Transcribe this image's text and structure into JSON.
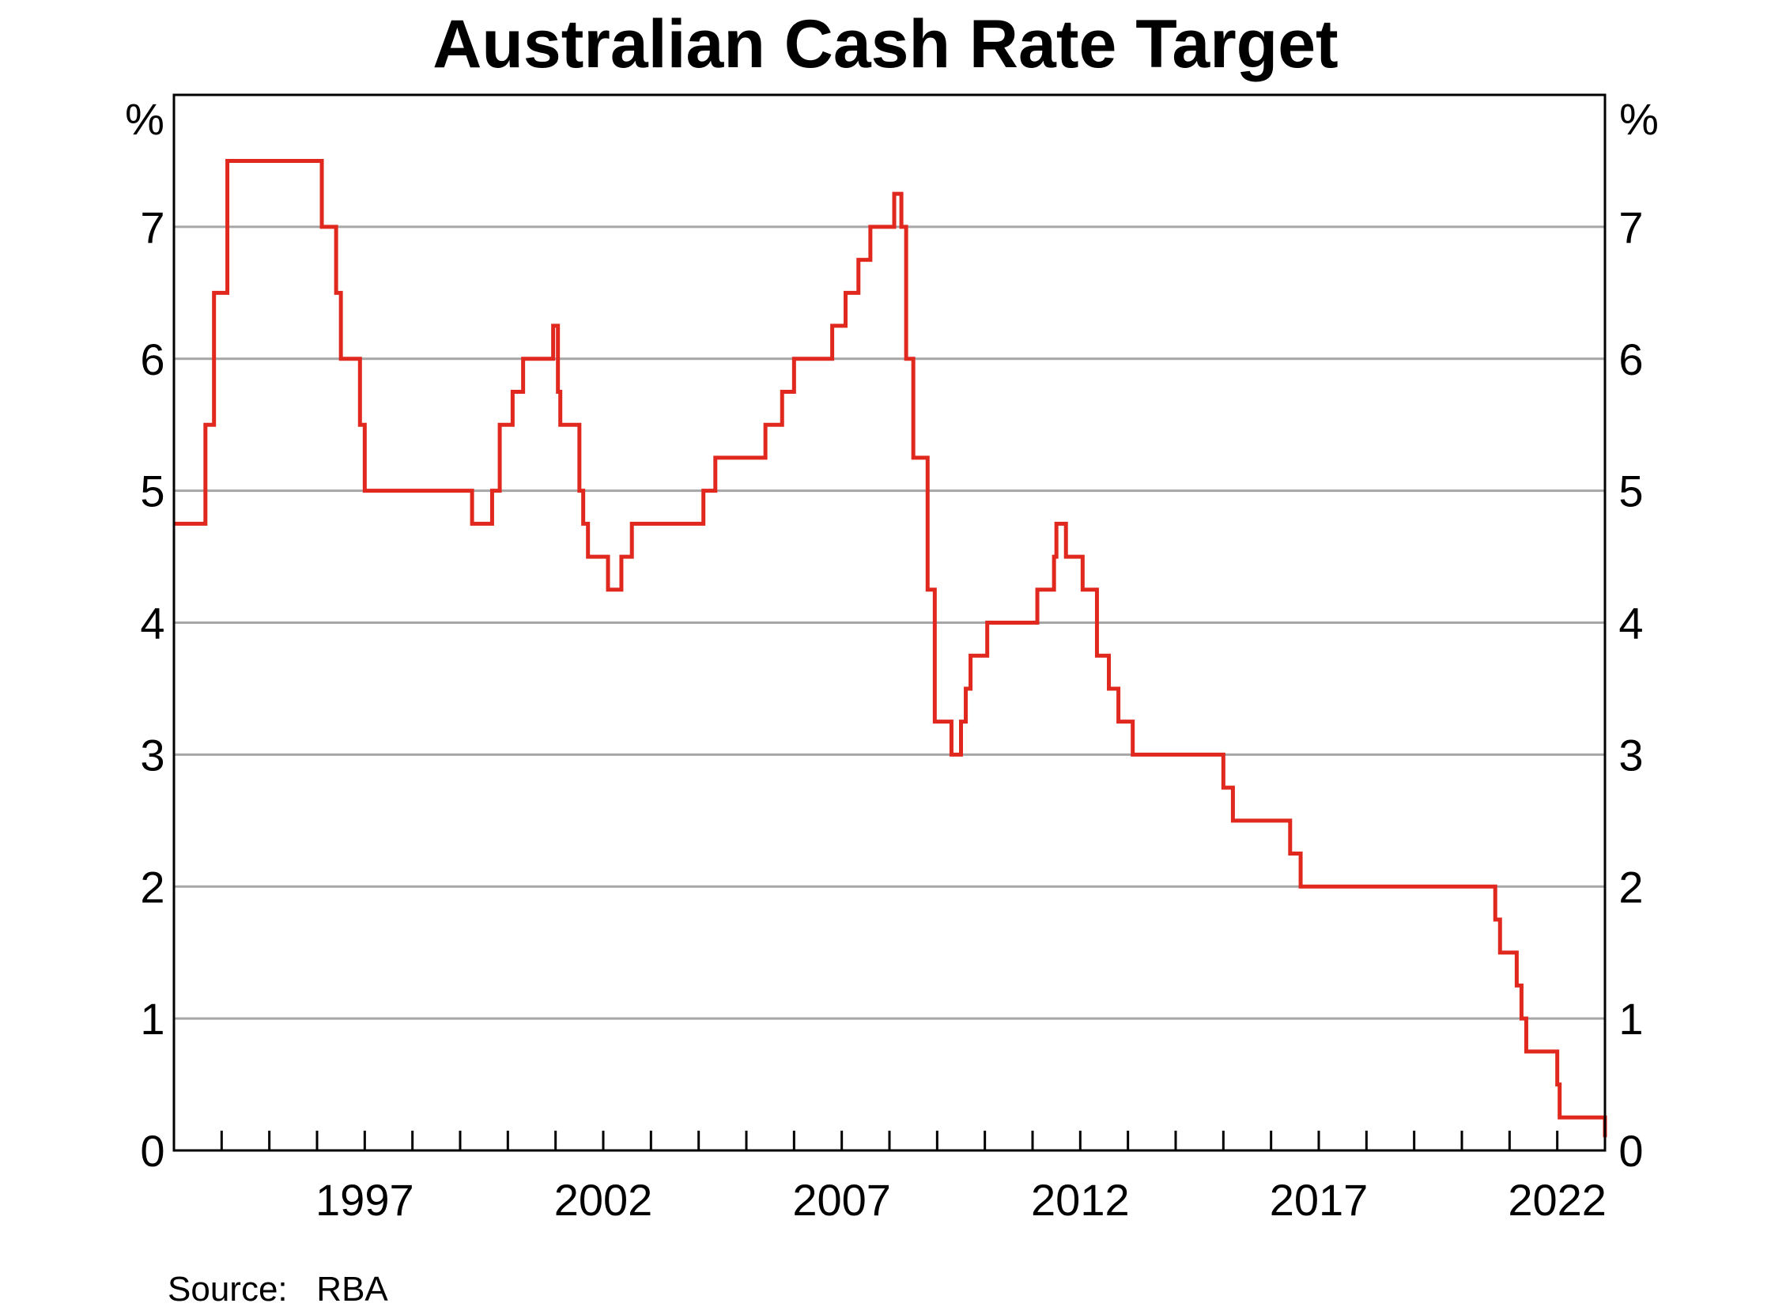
{
  "chart_data": {
    "type": "line",
    "title": "Australian Cash Rate Target",
    "y_unit_left": "%",
    "y_unit_right": "%",
    "source": "Source:   RBA",
    "xlim": [
      1993.5,
      2023.5
    ],
    "ylim": [
      0,
      8
    ],
    "yticks": [
      0,
      1,
      2,
      3,
      4,
      5,
      6,
      7
    ],
    "xtick_labels": [
      "1997",
      "2002",
      "2007",
      "2012",
      "2017",
      "2022"
    ],
    "xtick_positions": [
      1997.5,
      2002.5,
      2007.5,
      2012.5,
      2017.5,
      2022.5
    ],
    "minor_ticks_per_year": true,
    "grid": true,
    "colors": {
      "series": "#e0281e",
      "grid": "#a6a6a6",
      "axis": "#000000"
    },
    "series": [
      {
        "name": "",
        "step": "post",
        "x": [
          1993.5,
          1994.16,
          1994.34,
          1994.62,
          1994.95,
          1995.0,
          1996.6,
          1996.9,
          1997.0,
          1997.4,
          1997.5,
          1998.0,
          1999.75,
          2000.17,
          2000.33,
          2000.6,
          2000.82,
          2001.45,
          2001.55,
          2001.6,
          2002.0,
          2002.08,
          2002.18,
          2002.6,
          2002.88,
          2003.1,
          2004.6,
          2004.85,
          2005.9,
          2006.25,
          2006.5,
          2007.3,
          2007.58,
          2007.85,
          2008.1,
          2008.6,
          2008.75,
          2008.85,
          2009.0,
          2009.3,
          2009.45,
          2009.8,
          2010.0,
          2010.1,
          2010.2,
          2010.55,
          2011.6,
          2011.95,
          2012.0,
          2012.2,
          2012.55,
          2012.85,
          2013.1,
          2013.3,
          2013.6,
          2015.5,
          2015.7,
          2016.9,
          2017.12,
          2021.2,
          2021.3,
          2021.65,
          2021.75,
          2021.85,
          2022.5,
          2022.55,
          2023.5
        ],
        "y": [
          4.75,
          5.5,
          6.5,
          7.5,
          7.5,
          7.5,
          7.0,
          6.5,
          6.0,
          5.5,
          5.0,
          5.0,
          4.75,
          5.0,
          5.5,
          5.75,
          6.0,
          6.25,
          5.75,
          5.5,
          5.0,
          4.75,
          4.5,
          4.25,
          4.5,
          4.75,
          5.0,
          5.25,
          5.5,
          5.75,
          6.0,
          6.25,
          6.5,
          6.75,
          7.0,
          7.25,
          7.0,
          6.0,
          5.25,
          4.25,
          3.25,
          3.0,
          3.25,
          3.5,
          3.75,
          4.0,
          4.25,
          4.5,
          4.75,
          4.5,
          4.25,
          3.75,
          3.5,
          3.25,
          3.0,
          2.75,
          2.5,
          2.25,
          2.0,
          1.75,
          1.5,
          1.25,
          1.0,
          0.75,
          0.5,
          0.25,
          0.1
        ]
      }
    ]
  }
}
